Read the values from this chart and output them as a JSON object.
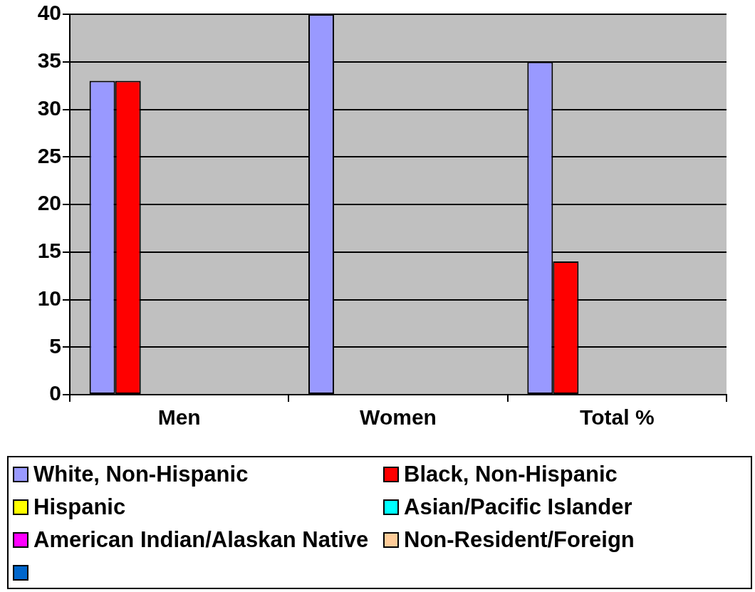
{
  "chart_data": {
    "type": "bar",
    "categories": [
      "Men",
      "Women",
      "Total %"
    ],
    "series": [
      {
        "name": "White, Non-Hispanic",
        "color": "#9999ff",
        "values": [
          33,
          40,
          35
        ]
      },
      {
        "name": "Black, Non-Hispanic",
        "color": "#ff0000",
        "values": [
          33,
          0,
          14
        ]
      },
      {
        "name": "Hispanic",
        "color": "#ffff00",
        "values": [
          null,
          null,
          null
        ]
      },
      {
        "name": "Asian/Pacific Islander",
        "color": "#00ffff",
        "values": [
          null,
          null,
          null
        ]
      },
      {
        "name": "American Indian/Alaskan Native",
        "color": "#ff00ff",
        "values": [
          null,
          null,
          null
        ]
      },
      {
        "name": "Non-Resident/Foreign",
        "color": "#ffcc99",
        "values": [
          0,
          null,
          0
        ]
      },
      {
        "color": "#0066cc",
        "values": [
          null,
          null,
          null
        ]
      }
    ],
    "ylim": [
      0,
      40
    ],
    "yticks": [
      0,
      5,
      10,
      15,
      20,
      25,
      30,
      35,
      40
    ],
    "grid": "y",
    "legend": "bottom"
  }
}
